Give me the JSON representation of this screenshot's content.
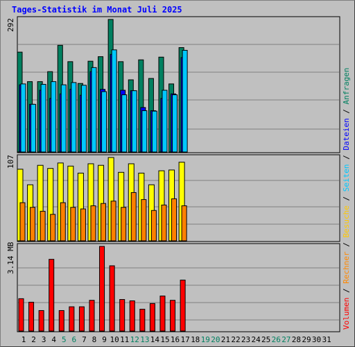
{
  "title": "Tages-Statistik im Monat Juli 2025",
  "legend": [
    {
      "text": "Volumen",
      "color": "#ff0000"
    },
    {
      "text": " / ",
      "color": "#000000"
    },
    {
      "text": "Rechner",
      "color": "#ff8800"
    },
    {
      "text": " / ",
      "color": "#000000"
    },
    {
      "text": "Besuche",
      "color": "#ffc800"
    },
    {
      "text": " / ",
      "color": "#000000"
    },
    {
      "text": "Seiten",
      "color": "#00c8ff"
    },
    {
      "text": " / ",
      "color": "#000000"
    },
    {
      "text": "Dateien",
      "color": "#0000ff"
    },
    {
      "text": " / ",
      "color": "#000000"
    },
    {
      "text": "Anfragen",
      "color": "#008060"
    }
  ],
  "axis_labels": {
    "top": "292",
    "middle": "107",
    "bottom": "3.14 MB"
  },
  "colors": {
    "anfragen": "#008060",
    "dateien": "#0000ff",
    "seiten": "#00c8ff",
    "besuche": "#ffff00",
    "rechner": "#ff8000",
    "volumen": "#ff0000",
    "weekday": "#000000",
    "weekend": "#008060"
  },
  "days": [
    {
      "label": "1",
      "weekend": false
    },
    {
      "label": "2",
      "weekend": false
    },
    {
      "label": "3",
      "weekend": false
    },
    {
      "label": "4",
      "weekend": false
    },
    {
      "label": "5",
      "weekend": true
    },
    {
      "label": "6",
      "weekend": true
    },
    {
      "label": "7",
      "weekend": false
    },
    {
      "label": "8",
      "weekend": false
    },
    {
      "label": "9",
      "weekend": false
    },
    {
      "label": "10",
      "weekend": false
    },
    {
      "label": "11",
      "weekend": false
    },
    {
      "label": "12",
      "weekend": true
    },
    {
      "label": "13",
      "weekend": true
    },
    {
      "label": "14",
      "weekend": false
    },
    {
      "label": "15",
      "weekend": false
    },
    {
      "label": "16",
      "weekend": false
    },
    {
      "label": "17",
      "weekend": false
    },
    {
      "label": "18",
      "weekend": false
    },
    {
      "label": "19",
      "weekend": true
    },
    {
      "label": "20",
      "weekend": true
    },
    {
      "label": "21",
      "weekend": false
    },
    {
      "label": "22",
      "weekend": false
    },
    {
      "label": "23",
      "weekend": false
    },
    {
      "label": "24",
      "weekend": false
    },
    {
      "label": "25",
      "weekend": false
    },
    {
      "label": "26",
      "weekend": true
    },
    {
      "label": "27",
      "weekend": true
    },
    {
      "label": "28",
      "weekend": false
    },
    {
      "label": "29",
      "weekend": false
    },
    {
      "label": "30",
      "weekend": false
    },
    {
      "label": "31",
      "weekend": false
    }
  ],
  "chart_data": [
    {
      "type": "bar",
      "name": "anfragen-seiten-dateien",
      "categories": [
        "1",
        "2",
        "3",
        "4",
        "5",
        "6",
        "7",
        "8",
        "9",
        "10",
        "11",
        "12",
        "13",
        "14",
        "15",
        "16",
        "17"
      ],
      "series": [
        {
          "name": "Anfragen",
          "values": [
            220,
            155,
            155,
            177,
            235,
            199,
            151,
            200,
            210,
            292,
            199,
            159,
            203,
            162,
            209,
            150,
            230
          ]
        },
        {
          "name": "Dateien",
          "values": [
            148,
            105,
            136,
            118,
            128,
            138,
            125,
            177,
            138,
            215,
            136,
            135,
            98,
            91,
            118,
            128,
            208
          ]
        },
        {
          "name": "Seiten",
          "values": [
            150,
            105,
            149,
            155,
            148,
            153,
            147,
            186,
            133,
            225,
            126,
            135,
            91,
            90,
            136,
            126,
            224
          ]
        }
      ],
      "ymax": 292
    },
    {
      "type": "bar",
      "name": "besuche-rechner",
      "categories": [
        "1",
        "2",
        "3",
        "4",
        "5",
        "6",
        "7",
        "8",
        "9",
        "10",
        "11",
        "12",
        "13",
        "14",
        "15",
        "16",
        "17"
      ],
      "series": [
        {
          "name": "Besuche",
          "values": [
            92,
            72,
            97,
            93,
            100,
            96,
            87,
            99,
            97,
            107,
            88,
            99,
            87,
            72,
            90,
            91,
            101
          ]
        },
        {
          "name": "Rechner",
          "values": [
            49,
            43,
            38,
            34,
            49,
            43,
            41,
            45,
            48,
            51,
            43,
            62,
            53,
            39,
            46,
            54,
            45
          ]
        }
      ],
      "ymax": 107
    },
    {
      "type": "bar",
      "name": "volumen",
      "categories": [
        "1",
        "2",
        "3",
        "4",
        "5",
        "6",
        "7",
        "8",
        "9",
        "10",
        "11",
        "12",
        "13",
        "14",
        "15",
        "16",
        "17"
      ],
      "series": [
        {
          "name": "Volumen",
          "values": [
            1.2,
            1.07,
            0.76,
            2.66,
            0.76,
            0.9,
            0.9,
            1.14,
            3.14,
            2.42,
            1.17,
            1.12,
            0.81,
            1.02,
            1.3,
            1.14,
            1.89
          ]
        }
      ],
      "ymax": 3.14,
      "unit": "MB"
    }
  ]
}
